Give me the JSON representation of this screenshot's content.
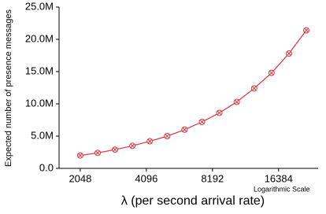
{
  "chart_data": {
    "type": "line",
    "y_label": "Expected number of presence messages",
    "x_label": "λ (per second arrival rate)",
    "annotation": "Logarithmic Scale",
    "x_log_base": 2,
    "x": [
      2048,
      2458,
      2949,
      3539,
      4247,
      5096,
      6115,
      7338,
      8806,
      10567,
      12680,
      15216,
      18260,
      21912
    ],
    "series": [
      {
        "name": "Expected presence messages",
        "color": "#e0323a",
        "values": [
          2000000,
          2400000,
          2900000,
          3500000,
          4200000,
          5000000,
          6000000,
          7200000,
          8600000,
          10300000,
          12400000,
          14800000,
          17800000,
          21400000
        ]
      }
    ],
    "xlim": [
      1640,
      24800
    ],
    "xticks": [
      2048,
      4096,
      8192,
      16384
    ],
    "ylim": [
      0,
      25000000
    ],
    "yticks": [
      {
        "value": 0,
        "label": "0.0"
      },
      {
        "value": 5000000,
        "label": "5.0M"
      },
      {
        "value": 10000000,
        "label": "10.0M"
      },
      {
        "value": 15000000,
        "label": "15.0M"
      },
      {
        "value": 20000000,
        "label": "20.0M"
      },
      {
        "value": 25000000,
        "label": "25.0M"
      }
    ]
  }
}
